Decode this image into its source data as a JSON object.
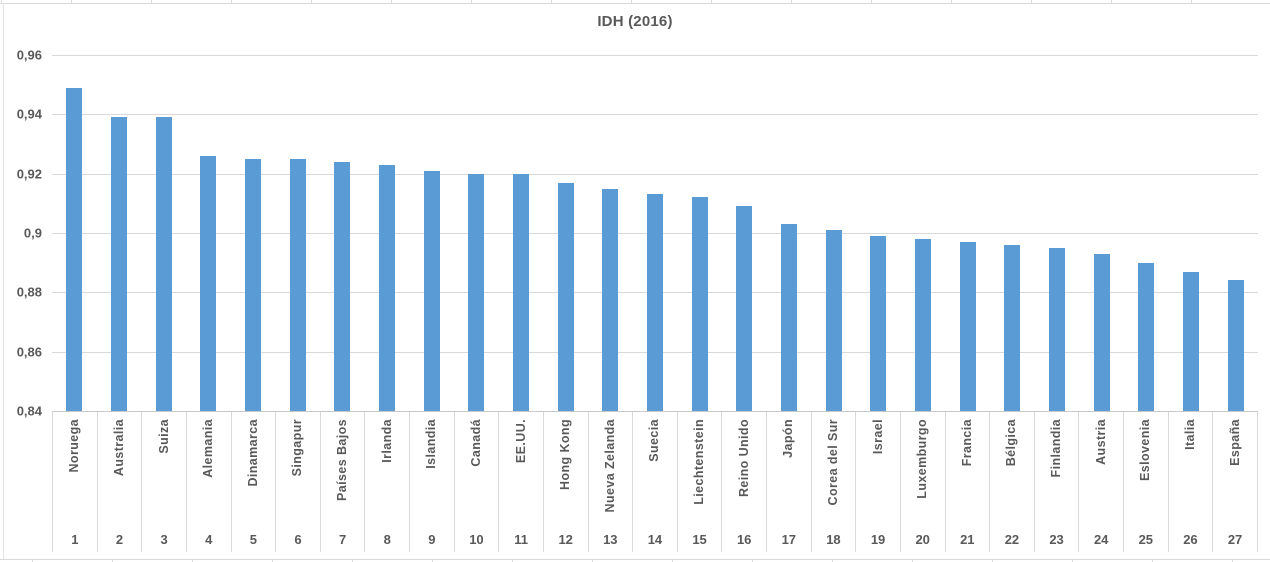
{
  "chart": {
    "title": "IDH (2016)"
  },
  "chart_data": {
    "type": "bar",
    "title": "IDH (2016)",
    "xlabel": "",
    "ylabel": "",
    "legend": "none",
    "grid": true,
    "ylim": [
      0.84,
      0.96
    ],
    "yticks": [
      {
        "label": "0,96",
        "value": 0.96
      },
      {
        "label": "0,94",
        "value": 0.94
      },
      {
        "label": "0,92",
        "value": 0.92
      },
      {
        "label": "0,9",
        "value": 0.9
      },
      {
        "label": "0,88",
        "value": 0.88
      },
      {
        "label": "0,86",
        "value": 0.86
      },
      {
        "label": "0,84",
        "value": 0.84
      }
    ],
    "categories": [
      "Noruega",
      "Australia",
      "Suiza",
      "Alemania",
      "Dinamarca",
      "Singapur",
      "Países Bajos",
      "Irlanda",
      "Islandia",
      "Canadá",
      "EE.UU.",
      "Hong Kong",
      "Nueva Zelanda",
      "Suecia",
      "Liechtenstein",
      "Reino Unido",
      "Japón",
      "Corea del Sur",
      "Israel",
      "Luxemburgo",
      "Francia",
      "Bélgica",
      "Finlandia",
      "Austria",
      "Eslovenia",
      "Italia",
      "España"
    ],
    "ranks": [
      "1",
      "2",
      "3",
      "4",
      "5",
      "6",
      "7",
      "8",
      "9",
      "10",
      "11",
      "12",
      "13",
      "14",
      "15",
      "16",
      "17",
      "18",
      "19",
      "20",
      "21",
      "22",
      "23",
      "24",
      "25",
      "26",
      "27"
    ],
    "values": [
      0.949,
      0.939,
      0.939,
      0.926,
      0.925,
      0.925,
      0.924,
      0.923,
      0.921,
      0.92,
      0.92,
      0.917,
      0.915,
      0.913,
      0.912,
      0.909,
      0.903,
      0.901,
      0.899,
      0.898,
      0.897,
      0.896,
      0.895,
      0.893,
      0.89,
      0.887,
      0.884
    ],
    "bar_color": "#5B9BD5",
    "text_color": "#595959",
    "gridline_color": "#D9D9D9"
  }
}
